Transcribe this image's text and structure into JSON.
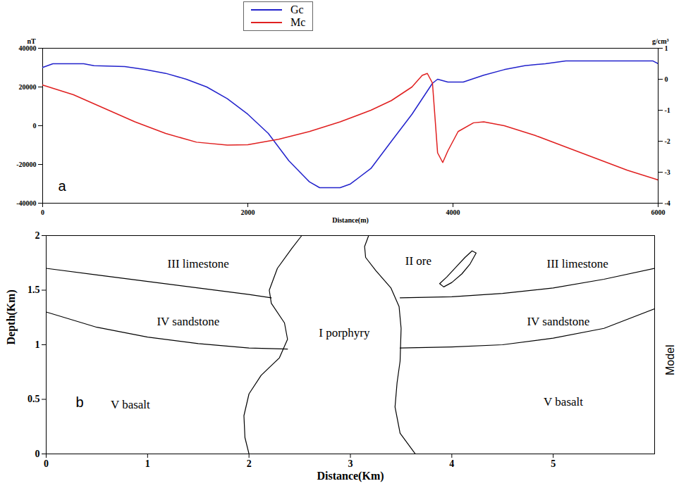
{
  "chart_data": [
    {
      "type": "line",
      "panel_label": "a",
      "x_label": "Distance(m)",
      "y_label": "nT",
      "y2_label": "g/cm³",
      "xlim": [
        0,
        6000
      ],
      "xticks": [
        0,
        2000,
        4000,
        6000
      ],
      "ylim": [
        -40000,
        40000
      ],
      "yticks": [
        -40000,
        -20000,
        0,
        20000,
        40000
      ],
      "y2lim": [
        -4,
        1
      ],
      "y2ticks": [
        -4,
        -3,
        -2,
        -1,
        0,
        1
      ],
      "legend": "top",
      "series": [
        {
          "name": "Gc",
          "color": "#2222cc",
          "axis": "y2",
          "x": [
            0,
            100,
            400,
            500,
            800,
            1000,
            1200,
            1400,
            1600,
            1800,
            2000,
            2200,
            2400,
            2600,
            2700,
            2900,
            3000,
            3200,
            3400,
            3600,
            3700,
            3800,
            3850,
            3950,
            4100,
            4300,
            4500,
            4700,
            4900,
            5100,
            5500,
            5950,
            6000
          ],
          "values": [
            0.38,
            0.5,
            0.5,
            0.44,
            0.41,
            0.31,
            0.19,
            0,
            -0.25,
            -0.63,
            -1.13,
            -1.75,
            -2.63,
            -3.31,
            -3.5,
            -3.5,
            -3.38,
            -2.88,
            -2,
            -1.13,
            -0.63,
            -0.13,
            0,
            -0.09,
            -0.09,
            0.13,
            0.31,
            0.44,
            0.5,
            0.59,
            0.59,
            0.59,
            0.5
          ]
        },
        {
          "name": "Mc",
          "color": "#e02020",
          "x": [
            0,
            300,
            600,
            900,
            1200,
            1500,
            1800,
            2000,
            2300,
            2600,
            2900,
            3200,
            3400,
            3600,
            3700,
            3750,
            3800,
            3850,
            3900,
            3950,
            4050,
            4200,
            4300,
            4500,
            4800,
            5100,
            5400,
            5700,
            6000
          ],
          "values": [
            21000,
            16000,
            9000,
            2000,
            -4000,
            -8500,
            -10000,
            -9800,
            -7000,
            -3000,
            2000,
            8000,
            13000,
            20000,
            26000,
            27000,
            22000,
            -14000,
            -19000,
            -13000,
            -3000,
            1500,
            2000,
            0,
            -5000,
            -11000,
            -17000,
            -23000,
            -28000
          ]
        }
      ]
    },
    {
      "type": "model",
      "panel_label": "b",
      "x_label": "Distance(Km)",
      "y_label": "Depth(Km)",
      "side_label": "Model",
      "xlim": [
        0,
        6
      ],
      "xticks": [
        0,
        1,
        2,
        3,
        4,
        5
      ],
      "ylim": [
        0,
        2
      ],
      "yticks": [
        0,
        0.5,
        1,
        1.5,
        2
      ],
      "boundaries": [
        {
          "x": [
            0,
            0.5,
            1,
            1.5,
            2,
            2.22
          ],
          "y": [
            1.7,
            1.64,
            1.58,
            1.52,
            1.46,
            1.43
          ]
        },
        {
          "x": [
            3.49,
            4,
            4.5,
            5,
            5.5,
            6
          ],
          "y": [
            1.43,
            1.44,
            1.47,
            1.52,
            1.6,
            1.7
          ]
        },
        {
          "x": [
            0,
            0.5,
            1,
            1.5,
            2,
            2.38
          ],
          "y": [
            1.3,
            1.16,
            1.07,
            1.01,
            0.97,
            0.96
          ]
        },
        {
          "x": [
            3.49,
            4,
            4.5,
            5,
            5.5,
            6
          ],
          "y": [
            0.97,
            0.98,
            1,
            1.06,
            1.15,
            1.33
          ]
        },
        {
          "x": [
            2,
            1.96,
            1.95,
            2,
            2.12,
            2.3,
            2.38,
            2.35,
            2.22,
            2.2,
            2.28,
            2.42,
            2.52
          ],
          "y": [
            0,
            0.15,
            0.35,
            0.55,
            0.72,
            0.88,
            1.05,
            1.2,
            1.38,
            1.5,
            1.7,
            1.88,
            2
          ]
        },
        {
          "x": [
            3.64,
            3.49,
            3.44,
            3.46,
            3.49,
            3.5,
            3.48,
            3.4,
            3.25,
            3.15,
            3.14,
            3.18
          ],
          "y": [
            0,
            0.19,
            0.43,
            0.65,
            0.85,
            1.15,
            1.35,
            1.52,
            1.68,
            1.8,
            1.9,
            2
          ]
        },
        {
          "x": [
            3.88,
            3.95,
            4.05,
            4.13,
            4.2,
            4.24,
            4.18,
            4.1,
            4,
            3.92,
            3.88
          ],
          "y": [
            1.56,
            1.62,
            1.72,
            1.8,
            1.86,
            1.84,
            1.74,
            1.65,
            1.57,
            1.53,
            1.56
          ]
        }
      ],
      "regions": [
        {
          "label": "III limestone",
          "x": 1.5,
          "y": 1.74
        },
        {
          "label": "II ore",
          "x": 3.67,
          "y": 1.77
        },
        {
          "label": "III limestone",
          "x": 5.24,
          "y": 1.74
        },
        {
          "label": "IV sandstone",
          "x": 1.4,
          "y": 1.21
        },
        {
          "label": "I porphyry",
          "x": 2.94,
          "y": 1.11
        },
        {
          "label": "IV sandstone",
          "x": 5.05,
          "y": 1.21
        },
        {
          "label": "V basalt",
          "x": 0.83,
          "y": 0.45
        },
        {
          "label": "V basalt",
          "x": 5.1,
          "y": 0.48
        }
      ]
    }
  ]
}
